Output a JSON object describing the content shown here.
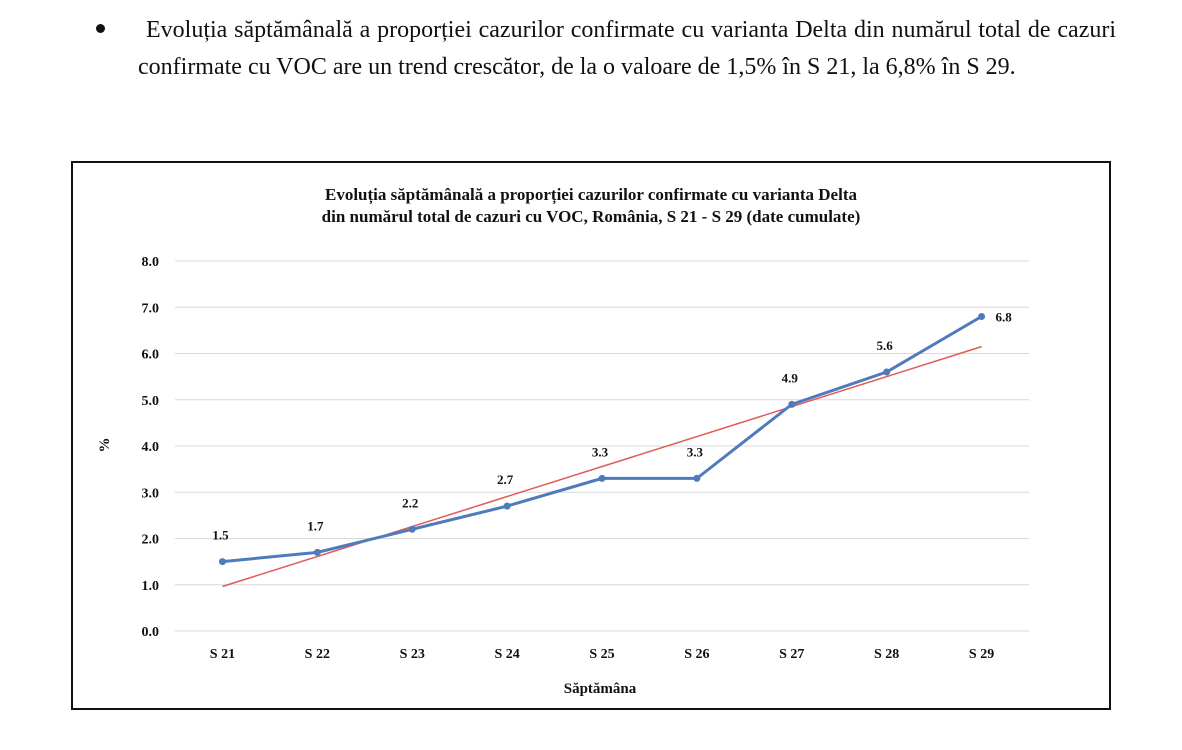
{
  "paragraph": {
    "text": "Evoluția săptămânală a proporției cazurilor confirmate cu varianta Delta din numărul total de cazuri confirmate cu VOC are un trend crescător, de la o valoare de 1,5% în S 21, la 6,8% în S 29."
  },
  "chart_data": {
    "type": "line",
    "title_lines": [
      "Evoluția săptămânală a proporției cazurilor confirmate cu varianta Delta",
      "din numărul total de cazuri cu VOC, România, S 21 - S 29 (date cumulate)"
    ],
    "xlabel": "Săptămâna",
    "ylabel": "%",
    "categories": [
      "S 21",
      "S 22",
      "S 23",
      "S 24",
      "S 25",
      "S 26",
      "S 27",
      "S 28",
      "S 29"
    ],
    "ylim": [
      0,
      8
    ],
    "yticks": [
      "0.0",
      "1.0",
      "2.0",
      "3.0",
      "4.0",
      "5.0",
      "6.0",
      "7.0",
      "8.0"
    ],
    "grid": true,
    "series": [
      {
        "values": [
          1.5,
          1.7,
          2.2,
          2.7,
          3.3,
          3.3,
          4.9,
          5.6,
          6.8
        ],
        "data_labels": [
          "1.5",
          "1.7",
          "2.2",
          "2.7",
          "3.3",
          "3.3",
          "4.9",
          "5.6",
          "6.8"
        ],
        "color": "#4f7bbd"
      }
    ],
    "trendline": {
      "kind": "linear",
      "color": "#e05a55"
    }
  }
}
